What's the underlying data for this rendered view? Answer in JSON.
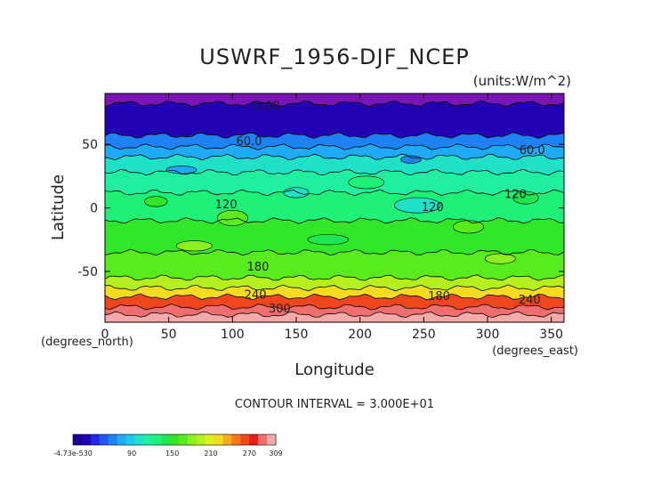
{
  "chart_data": {
    "type": "heatmap",
    "title": "USWRF_1956-DJF_NCEP",
    "units": "(units:W/m^2)",
    "xlabel": "Longitude",
    "ylabel": "Latitude",
    "x_unit_note": "(degrees_east)",
    "y_unit_note": "(degrees_north)",
    "xlim": [
      0,
      360
    ],
    "ylim": [
      -90,
      90
    ],
    "x_ticks": [
      0,
      50,
      100,
      150,
      200,
      250,
      300,
      350
    ],
    "y_ticks": [
      50,
      0,
      -50
    ],
    "contour_interval_text": "CONTOUR INTERVAL = 3.000E+01",
    "contour_labels": [
      {
        "text": "0.00",
        "lon": 127,
        "lat": 80
      },
      {
        "text": "60.0",
        "lon": 113,
        "lat": 52
      },
      {
        "text": "60.0",
        "lon": 335,
        "lat": 45
      },
      {
        "text": "120",
        "lon": 322,
        "lat": 10
      },
      {
        "text": "120",
        "lon": 95,
        "lat": 2
      },
      {
        "text": "120",
        "lon": 257,
        "lat": 0
      },
      {
        "text": "180",
        "lon": 120,
        "lat": -47
      },
      {
        "text": "240",
        "lon": 118,
        "lat": -69
      },
      {
        "text": "180",
        "lon": 262,
        "lat": -70
      },
      {
        "text": "240",
        "lon": 333,
        "lat": -73
      },
      {
        "text": "300",
        "lon": 137,
        "lat": -80
      }
    ],
    "zonal_bands": [
      {
        "lat_top": 90,
        "lat_bottom": 82,
        "value": 0
      },
      {
        "lat_top": 82,
        "lat_bottom": 57,
        "value": 20
      },
      {
        "lat_top": 57,
        "lat_bottom": 48,
        "value": 55
      },
      {
        "lat_top": 48,
        "lat_bottom": 40,
        "value": 75
      },
      {
        "lat_top": 40,
        "lat_bottom": 28,
        "value": 95
      },
      {
        "lat_top": 28,
        "lat_bottom": 12,
        "value": 115
      },
      {
        "lat_top": 12,
        "lat_bottom": -10,
        "value": 130
      },
      {
        "lat_top": -10,
        "lat_bottom": -35,
        "value": 150
      },
      {
        "lat_top": -35,
        "lat_bottom": -55,
        "value": 170
      },
      {
        "lat_top": -55,
        "lat_bottom": -63,
        "value": 190
      },
      {
        "lat_top": -63,
        "lat_bottom": -70,
        "value": 215
      },
      {
        "lat_top": -70,
        "lat_bottom": -78,
        "value": 265
      },
      {
        "lat_top": -78,
        "lat_bottom": -84,
        "value": 290
      },
      {
        "lat_top": -84,
        "lat_bottom": -90,
        "value": 309
      }
    ],
    "colorbar": {
      "ticks": [
        "-4.73e-530",
        "90",
        "150",
        "210",
        "270",
        "309"
      ],
      "colors": [
        "#1a0096",
        "#2200b4",
        "#1e28e6",
        "#1e5af0",
        "#1e82f5",
        "#1eaaf5",
        "#1ec8f0",
        "#1ee1c8",
        "#1ef0a0",
        "#1ef078",
        "#1ee650",
        "#32e628",
        "#5aeb1e",
        "#8cf01e",
        "#b4f01e",
        "#dcf01e",
        "#f5dc1e",
        "#f5aa1e",
        "#f5781e",
        "#f0461e",
        "#e61e1e",
        "#f06e6e",
        "#f5aaaa"
      ]
    }
  }
}
